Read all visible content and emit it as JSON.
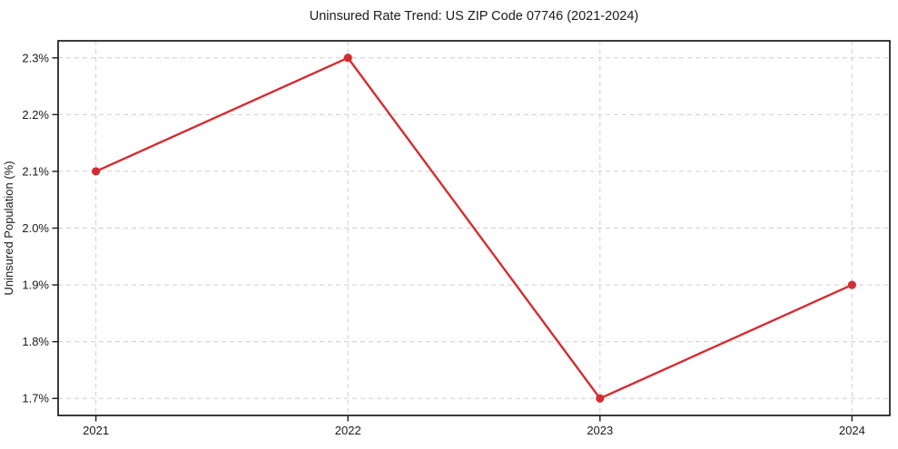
{
  "chart_data": {
    "type": "line",
    "title": "Uninsured Rate Trend: US ZIP Code 07746 (2021-2024)",
    "xlabel": "",
    "ylabel": "Uninsured Population (%)",
    "x": [
      2021,
      2022,
      2023,
      2024
    ],
    "x_tick_labels": [
      "2021",
      "2022",
      "2023",
      "2024"
    ],
    "values": [
      2.1,
      2.3,
      1.7,
      1.9
    ],
    "y_ticks": [
      1.7,
      1.8,
      1.9,
      2.0,
      2.1,
      2.2,
      2.3
    ],
    "y_tick_labels": [
      "1.7%",
      "1.8%",
      "1.9%",
      "2.0%",
      "2.1%",
      "2.2%",
      "2.3%"
    ],
    "xlim": [
      2020.85,
      2024.15
    ],
    "ylim": [
      1.67,
      2.33
    ],
    "grid": true,
    "grid_style": "dashed",
    "legend": "none",
    "marker": "circle",
    "colors": {
      "line": "#d32d33",
      "marker": "#d32d33",
      "grid": "#cfcfcf",
      "spine": "#1a1a1a",
      "text": "#1a1a1a",
      "background": "#ffffff"
    }
  }
}
